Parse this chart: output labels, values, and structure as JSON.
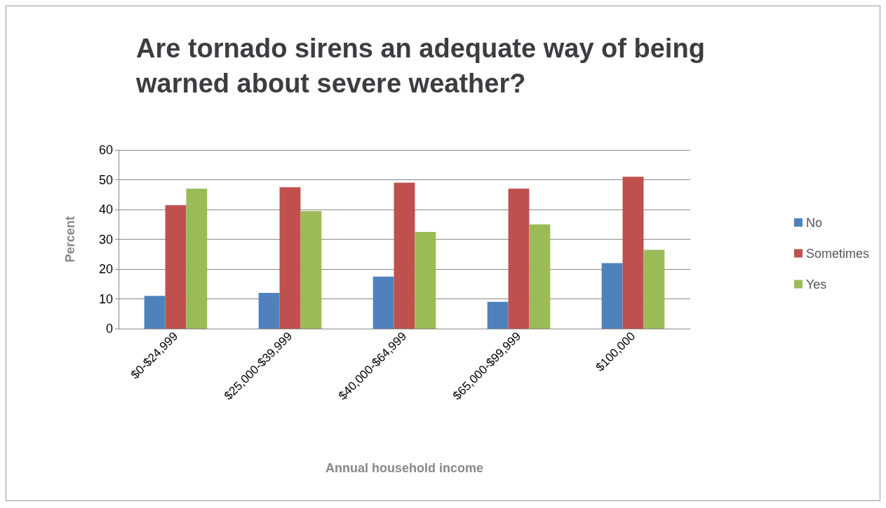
{
  "chart_data": {
    "type": "bar",
    "title": "Are tornado sirens an adequate way of being warned about severe weather?",
    "xlabel": "Annual household income",
    "ylabel": "Percent",
    "categories": [
      "$0-$24,999",
      "$25,000-$39,999",
      "$40,000-$64,999",
      "$65,000-$99,999",
      "$100,000"
    ],
    "series": [
      {
        "name": "No",
        "color": "#4f81bd",
        "values": [
          11,
          12,
          17.5,
          9,
          22
        ]
      },
      {
        "name": "Sometimes",
        "color": "#c0504d",
        "values": [
          41.5,
          47.5,
          49,
          47,
          51
        ]
      },
      {
        "name": "Yes",
        "color": "#9bbb59",
        "values": [
          47,
          39.5,
          32.5,
          35,
          26.5
        ]
      }
    ],
    "ylim": [
      0,
      60
    ],
    "yticks": [
      0,
      10,
      20,
      30,
      40,
      50,
      60
    ],
    "grid": "y",
    "legend": "right"
  }
}
